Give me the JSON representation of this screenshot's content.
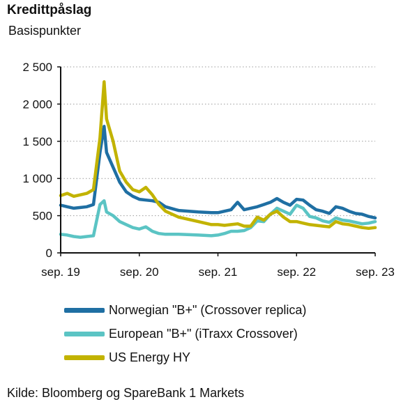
{
  "title": "Kredittpåslag",
  "subtitle": "Basispunkter",
  "source": "Kilde: Bloomberg og SpareBank 1 Markets",
  "chart_data": {
    "type": "line",
    "ylabel": "Basispunkter",
    "ylim": [
      0,
      2500
    ],
    "yticks": [
      0,
      500,
      1000,
      1500,
      2000,
      2500
    ],
    "ytick_labels": [
      "0",
      "500",
      "1 000",
      "1 500",
      "2 000",
      "2 500"
    ],
    "xlim": [
      "2019-09",
      "2023-09"
    ],
    "xticks": [
      "2019-09",
      "2020-09",
      "2021-09",
      "2022-09",
      "2023-09"
    ],
    "xtick_labels": [
      "sep. 19",
      "sep. 20",
      "sep. 21",
      "sep. 22",
      "sep. 23"
    ],
    "grid": "horizontal dotted",
    "legend_position": "below",
    "series": [
      {
        "name": "Norwegian \"B+\" (Crossover replica)",
        "color": "#1f6fa3",
        "points": [
          [
            "2019-09",
            640
          ],
          [
            "2019-10",
            620
          ],
          [
            "2019-11",
            600
          ],
          [
            "2019-12",
            610
          ],
          [
            "2020-01",
            620
          ],
          [
            "2020-02",
            650
          ],
          [
            "2020-03",
            1350
          ],
          [
            "2020-03-20",
            1700
          ],
          [
            "2020-04",
            1350
          ],
          [
            "2020-05",
            1150
          ],
          [
            "2020-06",
            950
          ],
          [
            "2020-07",
            820
          ],
          [
            "2020-08",
            760
          ],
          [
            "2020-09",
            720
          ],
          [
            "2020-10",
            710
          ],
          [
            "2020-11",
            700
          ],
          [
            "2020-12",
            680
          ],
          [
            "2021-01",
            620
          ],
          [
            "2021-03",
            570
          ],
          [
            "2021-06",
            550
          ],
          [
            "2021-08",
            540
          ],
          [
            "2021-09",
            540
          ],
          [
            "2021-10",
            560
          ],
          [
            "2021-11",
            580
          ],
          [
            "2021-12",
            680
          ],
          [
            "2022-01",
            580
          ],
          [
            "2022-03",
            620
          ],
          [
            "2022-05",
            680
          ],
          [
            "2022-06",
            730
          ],
          [
            "2022-07",
            680
          ],
          [
            "2022-08",
            640
          ],
          [
            "2022-09",
            720
          ],
          [
            "2022-10",
            710
          ],
          [
            "2022-11",
            640
          ],
          [
            "2022-12",
            580
          ],
          [
            "2023-01",
            560
          ],
          [
            "2023-02",
            530
          ],
          [
            "2023-03",
            620
          ],
          [
            "2023-04",
            600
          ],
          [
            "2023-05",
            560
          ],
          [
            "2023-06",
            530
          ],
          [
            "2023-07",
            520
          ],
          [
            "2023-08",
            490
          ],
          [
            "2023-09",
            470
          ]
        ]
      },
      {
        "name": "European \"B+\" (iTraxx Crossover)",
        "color": "#5bc4c4",
        "points": [
          [
            "2019-09",
            250
          ],
          [
            "2019-10",
            240
          ],
          [
            "2019-11",
            220
          ],
          [
            "2019-12",
            210
          ],
          [
            "2020-01",
            220
          ],
          [
            "2020-02",
            230
          ],
          [
            "2020-03",
            650
          ],
          [
            "2020-03-20",
            700
          ],
          [
            "2020-04",
            550
          ],
          [
            "2020-05",
            500
          ],
          [
            "2020-06",
            420
          ],
          [
            "2020-07",
            380
          ],
          [
            "2020-08",
            340
          ],
          [
            "2020-09",
            320
          ],
          [
            "2020-10",
            350
          ],
          [
            "2020-11",
            290
          ],
          [
            "2020-12",
            260
          ],
          [
            "2021-01",
            250
          ],
          [
            "2021-03",
            250
          ],
          [
            "2021-06",
            240
          ],
          [
            "2021-08",
            230
          ],
          [
            "2021-09",
            240
          ],
          [
            "2021-10",
            260
          ],
          [
            "2021-11",
            290
          ],
          [
            "2021-12",
            290
          ],
          [
            "2022-01",
            300
          ],
          [
            "2022-02",
            340
          ],
          [
            "2022-03",
            430
          ],
          [
            "2022-04",
            420
          ],
          [
            "2022-05",
            520
          ],
          [
            "2022-06",
            600
          ],
          [
            "2022-07",
            560
          ],
          [
            "2022-08",
            520
          ],
          [
            "2022-09",
            640
          ],
          [
            "2022-10",
            600
          ],
          [
            "2022-11",
            490
          ],
          [
            "2022-12",
            470
          ],
          [
            "2023-01",
            430
          ],
          [
            "2023-02",
            410
          ],
          [
            "2023-03",
            470
          ],
          [
            "2023-04",
            440
          ],
          [
            "2023-05",
            430
          ],
          [
            "2023-06",
            410
          ],
          [
            "2023-07",
            390
          ],
          [
            "2023-08",
            400
          ],
          [
            "2023-09",
            420
          ]
        ]
      },
      {
        "name": "US Energy HY",
        "color": "#c2b300",
        "points": [
          [
            "2019-09",
            770
          ],
          [
            "2019-10",
            800
          ],
          [
            "2019-11",
            760
          ],
          [
            "2019-12",
            780
          ],
          [
            "2020-01",
            800
          ],
          [
            "2020-02",
            850
          ],
          [
            "2020-03",
            1550
          ],
          [
            "2020-03-20",
            2300
          ],
          [
            "2020-04",
            1800
          ],
          [
            "2020-05",
            1500
          ],
          [
            "2020-06",
            1100
          ],
          [
            "2020-07",
            950
          ],
          [
            "2020-08",
            850
          ],
          [
            "2020-09",
            820
          ],
          [
            "2020-10",
            880
          ],
          [
            "2020-11",
            780
          ],
          [
            "2020-12",
            650
          ],
          [
            "2021-01",
            560
          ],
          [
            "2021-03",
            480
          ],
          [
            "2021-06",
            420
          ],
          [
            "2021-08",
            380
          ],
          [
            "2021-09",
            380
          ],
          [
            "2021-10",
            370
          ],
          [
            "2021-11",
            380
          ],
          [
            "2021-12",
            390
          ],
          [
            "2022-01",
            360
          ],
          [
            "2022-02",
            360
          ],
          [
            "2022-03",
            480
          ],
          [
            "2022-04",
            440
          ],
          [
            "2022-05",
            520
          ],
          [
            "2022-06",
            560
          ],
          [
            "2022-07",
            480
          ],
          [
            "2022-08",
            420
          ],
          [
            "2022-09",
            420
          ],
          [
            "2022-10",
            400
          ],
          [
            "2022-11",
            380
          ],
          [
            "2022-12",
            370
          ],
          [
            "2023-01",
            360
          ],
          [
            "2023-02",
            350
          ],
          [
            "2023-03",
            420
          ],
          [
            "2023-04",
            390
          ],
          [
            "2023-05",
            380
          ],
          [
            "2023-06",
            360
          ],
          [
            "2023-07",
            340
          ],
          [
            "2023-08",
            330
          ],
          [
            "2023-09",
            340
          ]
        ]
      }
    ]
  }
}
